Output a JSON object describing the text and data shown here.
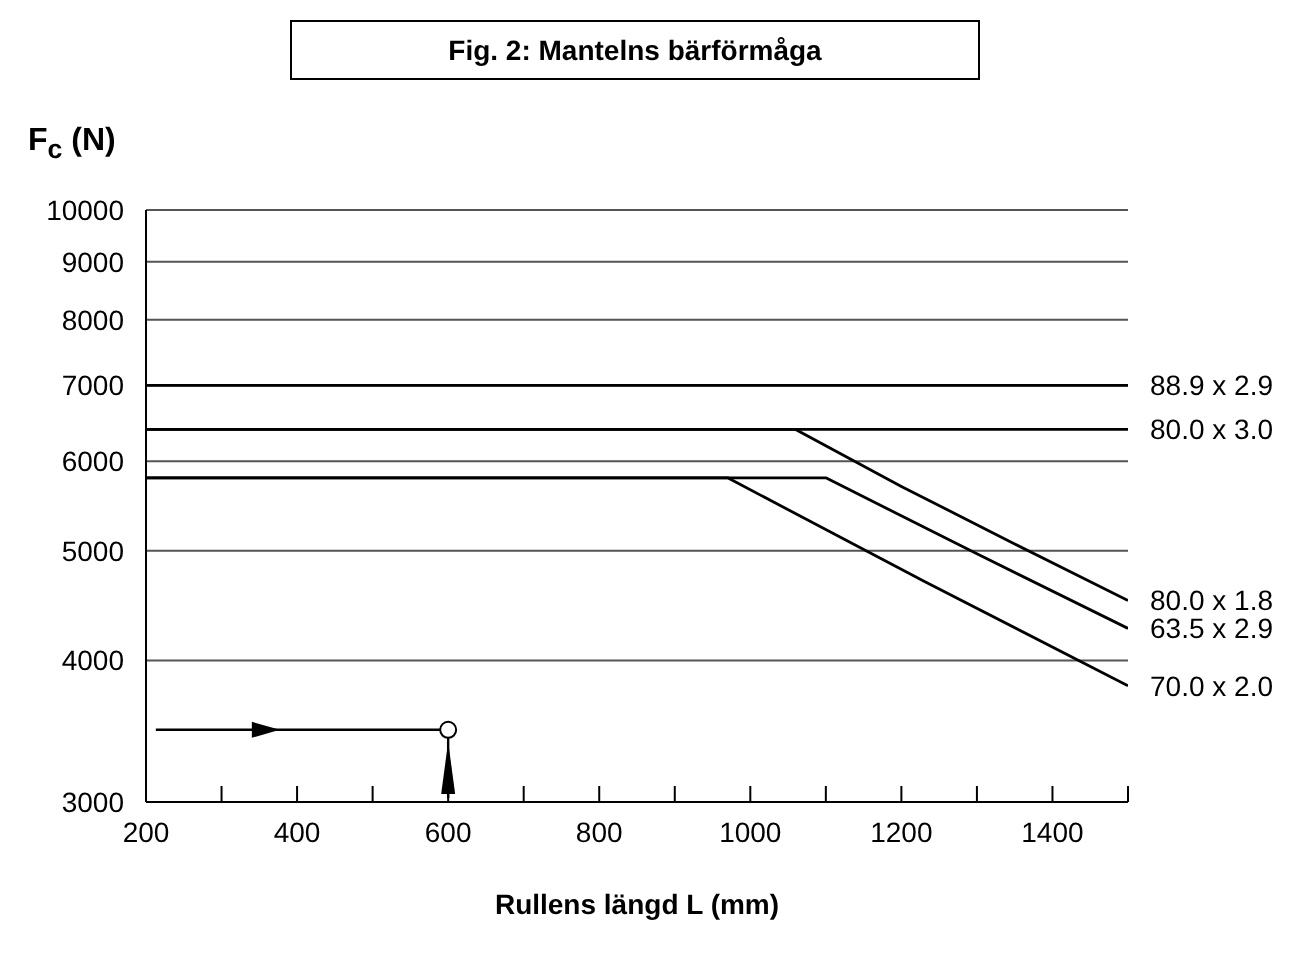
{
  "chart_data": {
    "type": "line",
    "title": "Fig. 2:  Mantelns bärförmåga",
    "xlabel": "Rullens längd  L  (mm)",
    "ylabel": "F$_{c}$  (N)",
    "log": "y",
    "grid": "y",
    "line_style": "solid",
    "marker": "none",
    "xlim": [
      200,
      1500
    ],
    "ylim": [
      3000,
      10000
    ],
    "xticks": [
      200,
      {
        "value": 300,
        "label": null
      },
      400,
      {
        "value": 500,
        "label": null
      },
      600,
      {
        "value": 700,
        "label": null
      },
      800,
      {
        "value": 900,
        "label": null
      },
      1000,
      {
        "value": 1100,
        "label": null
      },
      1200,
      {
        "value": 1300,
        "label": null
      },
      1400,
      {
        "value": 1500,
        "label": null
      }
    ],
    "yticks": [
      3000,
      4000,
      5000,
      6000,
      7000,
      8000,
      9000,
      10000
    ],
    "series": [
      {
        "name": "88.9 x 2.9",
        "color": "#000000",
        "x": [
          200,
          1500
        ],
        "values": [
          7000,
          7000
        ]
      },
      {
        "name": "80.0 x 3.0",
        "color": "#000000",
        "x": [
          200,
          1500
        ],
        "values": [
          6400,
          6400
        ]
      },
      {
        "name": "80.0 x 1.8",
        "color": "#000000",
        "x": [
          200,
          1060,
          1200,
          1350,
          1500
        ],
        "values": [
          6400,
          6400,
          5700,
          5070,
          4520
        ]
      },
      {
        "name": "63.5 x 2.9",
        "color": "#000000",
        "x": [
          200,
          1100,
          1300,
          1500
        ],
        "values": [
          5800,
          5800,
          4970,
          4270
        ]
      },
      {
        "name": "70.0 x 2.0",
        "color": "#000000",
        "x": [
          200,
          970,
          1230,
          1500
        ],
        "values": [
          5800,
          5800,
          4700,
          3800
        ]
      }
    ]
  }
}
